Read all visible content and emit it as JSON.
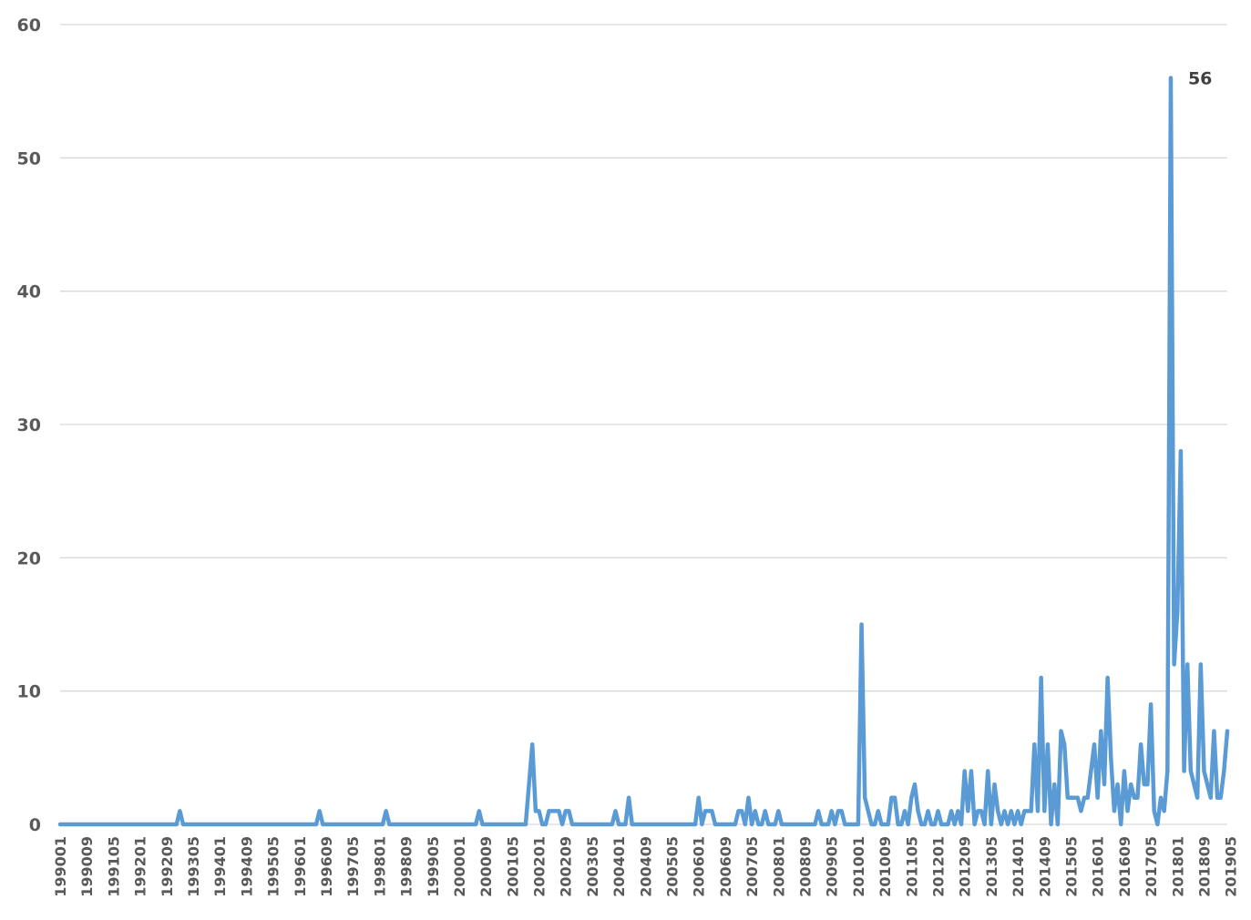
{
  "chart_data": {
    "type": "line",
    "title": "",
    "xlabel": "",
    "ylabel": "",
    "ylim": [
      0,
      60
    ],
    "yticks": [
      0,
      10,
      20,
      30,
      40,
      50,
      60
    ],
    "grid": true,
    "legend": "none",
    "x_tick_labels": [
      "199001",
      "199009",
      "199105",
      "199201",
      "199209",
      "199305",
      "199401",
      "199409",
      "199505",
      "199601",
      "199609",
      "199705",
      "199801",
      "199809",
      "199905",
      "200001",
      "200009",
      "200105",
      "200201",
      "200209",
      "200305",
      "200401",
      "200409",
      "200505",
      "200601",
      "200609",
      "200705",
      "200801",
      "200809",
      "200905",
      "201001",
      "201009",
      "201105",
      "201201",
      "201209",
      "201305",
      "201401",
      "201409",
      "201505",
      "201601",
      "201609",
      "201705",
      "201801",
      "201809",
      "201905"
    ],
    "series": [
      {
        "color": "#5b9bd5",
        "points": [
          [
            "199001",
            0
          ],
          [
            "199212",
            0
          ],
          [
            "199301",
            1
          ],
          [
            "199302",
            0
          ],
          [
            "199606",
            0
          ],
          [
            "199607",
            1
          ],
          [
            "199608",
            0
          ],
          [
            "199802",
            0
          ],
          [
            "199803",
            1
          ],
          [
            "199804",
            0
          ],
          [
            "200006",
            0
          ],
          [
            "200007",
            1
          ],
          [
            "200008",
            0
          ],
          [
            "200109",
            0
          ],
          [
            "200111",
            6
          ],
          [
            "200112",
            1
          ],
          [
            "200201",
            1
          ],
          [
            "200202",
            0
          ],
          [
            "200203",
            0
          ],
          [
            "200204",
            1
          ],
          [
            "200205",
            1
          ],
          [
            "200206",
            1
          ],
          [
            "200207",
            1
          ],
          [
            "200208",
            0
          ],
          [
            "200209",
            1
          ],
          [
            "200210",
            1
          ],
          [
            "200211",
            0
          ],
          [
            "200311",
            0
          ],
          [
            "200312",
            1
          ],
          [
            "200401",
            0
          ],
          [
            "200402",
            0
          ],
          [
            "200403",
            0
          ],
          [
            "200404",
            2
          ],
          [
            "200405",
            0
          ],
          [
            "200512",
            0
          ],
          [
            "200601",
            2
          ],
          [
            "200602",
            0
          ],
          [
            "200603",
            1
          ],
          [
            "200604",
            1
          ],
          [
            "200605",
            1
          ],
          [
            "200606",
            0
          ],
          [
            "200612",
            0
          ],
          [
            "200701",
            1
          ],
          [
            "200702",
            1
          ],
          [
            "200703",
            0
          ],
          [
            "200704",
            2
          ],
          [
            "200705",
            0
          ],
          [
            "200706",
            1
          ],
          [
            "200707",
            0
          ],
          [
            "200708",
            0
          ],
          [
            "200709",
            1
          ],
          [
            "200710",
            0
          ],
          [
            "200712",
            0
          ],
          [
            "200801",
            1
          ],
          [
            "200802",
            0
          ],
          [
            "200812",
            0
          ],
          [
            "200901",
            1
          ],
          [
            "200902",
            0
          ],
          [
            "200903",
            0
          ],
          [
            "200904",
            0
          ],
          [
            "200905",
            1
          ],
          [
            "200906",
            0
          ],
          [
            "200907",
            1
          ],
          [
            "200908",
            1
          ],
          [
            "200909",
            0
          ],
          [
            "201001",
            0
          ],
          [
            "201002",
            15
          ],
          [
            "201003",
            2
          ],
          [
            "201004",
            1
          ],
          [
            "201005",
            0
          ],
          [
            "201006",
            0
          ],
          [
            "201007",
            1
          ],
          [
            "201008",
            0
          ],
          [
            "201009",
            0
          ],
          [
            "201010",
            0
          ],
          [
            "201011",
            2
          ],
          [
            "201012",
            2
          ],
          [
            "201101",
            0
          ],
          [
            "201102",
            0
          ],
          [
            "201103",
            1
          ],
          [
            "201104",
            0
          ],
          [
            "201105",
            2
          ],
          [
            "201106",
            3
          ],
          [
            "201107",
            1
          ],
          [
            "201108",
            0
          ],
          [
            "201109",
            0
          ],
          [
            "201110",
            1
          ],
          [
            "201111",
            0
          ],
          [
            "201112",
            0
          ],
          [
            "201201",
            1
          ],
          [
            "201202",
            0
          ],
          [
            "201203",
            0
          ],
          [
            "201204",
            0
          ],
          [
            "201205",
            1
          ],
          [
            "201206",
            0
          ],
          [
            "201207",
            1
          ],
          [
            "201208",
            0
          ],
          [
            "201209",
            4
          ],
          [
            "201210",
            1
          ],
          [
            "201211",
            4
          ],
          [
            "201212",
            0
          ],
          [
            "201301",
            1
          ],
          [
            "201302",
            1
          ],
          [
            "201303",
            0
          ],
          [
            "201304",
            4
          ],
          [
            "201305",
            0
          ],
          [
            "201306",
            3
          ],
          [
            "201307",
            1
          ],
          [
            "201308",
            0
          ],
          [
            "201309",
            1
          ],
          [
            "201310",
            0
          ],
          [
            "201311",
            1
          ],
          [
            "201312",
            0
          ],
          [
            "201401",
            1
          ],
          [
            "201402",
            0
          ],
          [
            "201403",
            1
          ],
          [
            "201404",
            1
          ],
          [
            "201405",
            1
          ],
          [
            "201406",
            6
          ],
          [
            "201407",
            1
          ],
          [
            "201408",
            11
          ],
          [
            "201409",
            1
          ],
          [
            "201410",
            6
          ],
          [
            "201411",
            0
          ],
          [
            "201412",
            3
          ],
          [
            "201501",
            0
          ],
          [
            "201502",
            7
          ],
          [
            "201503",
            6
          ],
          [
            "201504",
            2
          ],
          [
            "201505",
            2
          ],
          [
            "201506",
            2
          ],
          [
            "201507",
            2
          ],
          [
            "201508",
            1
          ],
          [
            "201509",
            2
          ],
          [
            "201510",
            2
          ],
          [
            "201511",
            4
          ],
          [
            "201512",
            6
          ],
          [
            "201601",
            2
          ],
          [
            "201602",
            7
          ],
          [
            "201603",
            3
          ],
          [
            "201604",
            11
          ],
          [
            "201605",
            5
          ],
          [
            "201606",
            1
          ],
          [
            "201607",
            3
          ],
          [
            "201608",
            0
          ],
          [
            "201609",
            4
          ],
          [
            "201610",
            1
          ],
          [
            "201611",
            3
          ],
          [
            "201612",
            2
          ],
          [
            "201701",
            2
          ],
          [
            "201702",
            6
          ],
          [
            "201703",
            3
          ],
          [
            "201704",
            3
          ],
          [
            "201705",
            9
          ],
          [
            "201706",
            1
          ],
          [
            "201707",
            0
          ],
          [
            "201708",
            2
          ],
          [
            "201709",
            1
          ],
          [
            "201710",
            4
          ],
          [
            "201711",
            56
          ],
          [
            "201712",
            12
          ],
          [
            "201801",
            16
          ],
          [
            "201802",
            28
          ],
          [
            "201803",
            4
          ],
          [
            "201804",
            12
          ],
          [
            "201805",
            4
          ],
          [
            "201806",
            3
          ],
          [
            "201807",
            2
          ],
          [
            "201808",
            12
          ],
          [
            "201809",
            4
          ],
          [
            "201810",
            3
          ],
          [
            "201811",
            2
          ],
          [
            "201812",
            7
          ],
          [
            "201901",
            2
          ],
          [
            "201902",
            2
          ],
          [
            "201903",
            4
          ],
          [
            "201904",
            7
          ]
        ]
      }
    ],
    "annotations": [
      {
        "text": "56",
        "x": "201711",
        "y": 56
      }
    ]
  }
}
